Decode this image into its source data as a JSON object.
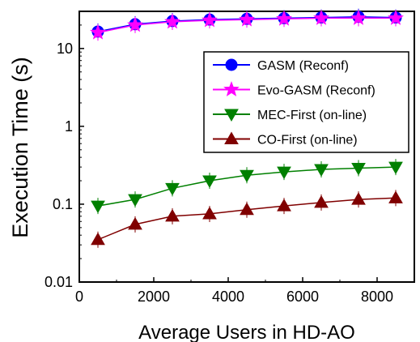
{
  "chart_data": {
    "type": "line",
    "title": "",
    "xlabel": "Average Users in HD-AO",
    "ylabel": "Execution Time (s)",
    "xlim": [
      0,
      9000
    ],
    "ylim": [
      0.01,
      30
    ],
    "y_scale": "log",
    "x_ticks": [
      0,
      2000,
      4000,
      6000,
      8000
    ],
    "x_tick_labels": [
      "0",
      "2000",
      "4000",
      "6000",
      "8000"
    ],
    "y_ticks": [
      0.01,
      0.1,
      1,
      10
    ],
    "y_tick_labels": [
      "0.01",
      "0.1",
      "1",
      "10"
    ],
    "grid": false,
    "legend_position": "center-right",
    "x": [
      500,
      1500,
      2500,
      3500,
      4500,
      5500,
      6500,
      7500,
      8500
    ],
    "series": [
      {
        "name": "GASM (Reconf)",
        "color": "#0000ff",
        "marker": "circle",
        "values": [
          16.5,
          20.5,
          22.5,
          23.5,
          24,
          24.5,
          25,
          25.5,
          25
        ]
      },
      {
        "name": "Evo-GASM (Reconf)",
        "color": "#ff00ff",
        "marker": "star",
        "values": [
          16,
          20,
          22,
          23,
          23.5,
          24,
          24.5,
          24.5,
          24.5
        ]
      },
      {
        "name": "MEC-First (on-line)",
        "color": "#008000",
        "marker": "triangle-down",
        "values": [
          0.095,
          0.115,
          0.16,
          0.2,
          0.235,
          0.26,
          0.28,
          0.29,
          0.3
        ]
      },
      {
        "name": "CO-First (on-line)",
        "color": "#800000",
        "marker": "triangle-up",
        "values": [
          0.035,
          0.055,
          0.07,
          0.075,
          0.085,
          0.095,
          0.105,
          0.115,
          0.12
        ]
      }
    ]
  }
}
